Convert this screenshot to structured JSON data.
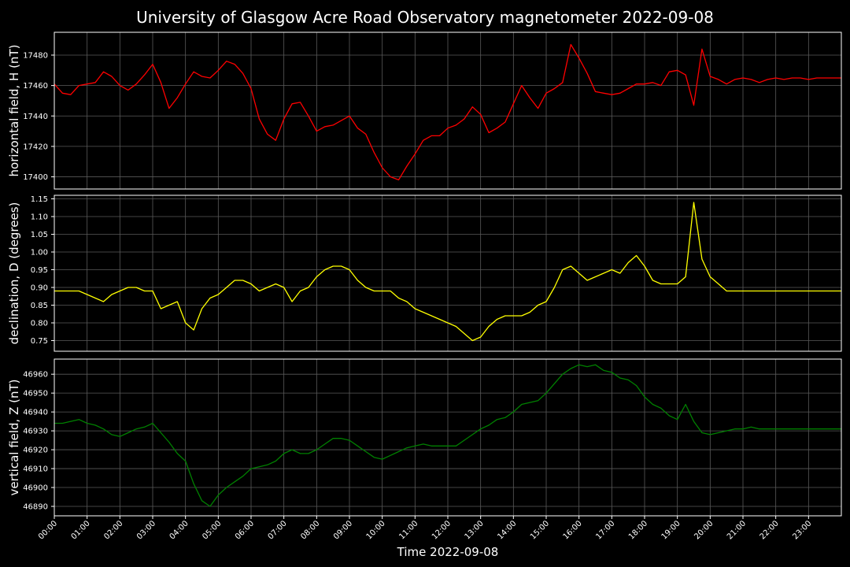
{
  "chart_data": {
    "type": "line",
    "title": "University of Glasgow Acre Road Observatory magnetometer 2022-09-08",
    "xlabel": "Time 2022-09-08",
    "x_tick_labels": [
      "00:00",
      "01:00",
      "02:00",
      "03:00",
      "04:00",
      "05:00",
      "06:00",
      "07:00",
      "08:00",
      "09:00",
      "10:00",
      "11:00",
      "12:00",
      "13:00",
      "14:00",
      "15:00",
      "16:00",
      "17:00",
      "18:00",
      "19:00",
      "20:00",
      "21:00",
      "22:00",
      "23:00"
    ],
    "xlim_hours": [
      0,
      24
    ],
    "grid": true,
    "panels": [
      {
        "ylabel": "horizontal field, H (nT)",
        "color": "#ff0000",
        "ylim": [
          17392,
          17495
        ],
        "yticks": [
          17400,
          17420,
          17440,
          17460,
          17480
        ],
        "ytick_labels": [
          "17400",
          "17420",
          "17440",
          "17460",
          "17480"
        ],
        "x": [
          0,
          0.25,
          0.5,
          0.75,
          1.0,
          1.25,
          1.5,
          1.75,
          2.0,
          2.25,
          2.5,
          2.75,
          3.0,
          3.25,
          3.5,
          3.75,
          4.0,
          4.25,
          4.5,
          4.75,
          5.0,
          5.25,
          5.5,
          5.75,
          6.0,
          6.25,
          6.5,
          6.75,
          7.0,
          7.25,
          7.5,
          7.75,
          8.0,
          8.25,
          8.5,
          8.75,
          9.0,
          9.25,
          9.5,
          9.75,
          10.0,
          10.25,
          10.5,
          10.75,
          11.0,
          11.25,
          11.5,
          11.75,
          12.0,
          12.25,
          12.5,
          12.75,
          13.0,
          13.25,
          13.5,
          13.75,
          14.0,
          14.25,
          14.5,
          14.75,
          15.0,
          15.25,
          15.5,
          15.75,
          16.0,
          16.25,
          16.5,
          16.75,
          17.0,
          17.25,
          17.5,
          17.75,
          18.0,
          18.25,
          18.5,
          18.75,
          19.0,
          19.25,
          19.5,
          19.75,
          20.0,
          20.25,
          20.5,
          20.75,
          21.0,
          21.25,
          21.5,
          21.75,
          22.0,
          22.25,
          22.5,
          22.75,
          23.0,
          23.25,
          23.5,
          23.75,
          24.0
        ],
        "values": [
          17461,
          17455,
          17454,
          17460,
          17461,
          17462,
          17469,
          17466,
          17460,
          17457,
          17461,
          17467,
          17474,
          17462,
          17445,
          17452,
          17461,
          17469,
          17466,
          17465,
          17470,
          17476,
          17474,
          17468,
          17458,
          17438,
          17428,
          17424,
          17438,
          17448,
          17449,
          17440,
          17430,
          17433,
          17434,
          17437,
          17440,
          17432,
          17428,
          17416,
          17406,
          17400,
          17398,
          17407,
          17415,
          17424,
          17427,
          17427,
          17432,
          17434,
          17438,
          17446,
          17441,
          17429,
          17432,
          17436,
          17448,
          17460,
          17452,
          17445,
          17455,
          17458,
          17462,
          17487,
          17478,
          17468,
          17456,
          17455,
          17454,
          17455,
          17458,
          17461,
          17461,
          17462,
          17460,
          17469,
          17470,
          17467,
          17447,
          17484,
          17466,
          17464,
          17461,
          17464,
          17465,
          17464,
          17462,
          17464,
          17465,
          17464,
          17465,
          17465,
          17464,
          17465,
          17465,
          17465,
          17465
        ]
      },
      {
        "ylabel": "declination, D (degrees)",
        "color": "#ffff00",
        "ylim": [
          0.72,
          1.16
        ],
        "yticks": [
          0.75,
          0.8,
          0.85,
          0.9,
          0.95,
          1.0,
          1.05,
          1.1,
          1.15
        ],
        "ytick_labels": [
          "0.75",
          "0.80",
          "0.85",
          "0.90",
          "0.95",
          "1.00",
          "1.05",
          "1.10",
          "1.15"
        ],
        "x": [
          0,
          0.25,
          0.5,
          0.75,
          1.0,
          1.25,
          1.5,
          1.75,
          2.0,
          2.25,
          2.5,
          2.75,
          3.0,
          3.25,
          3.5,
          3.75,
          4.0,
          4.25,
          4.5,
          4.75,
          5.0,
          5.25,
          5.5,
          5.75,
          6.0,
          6.25,
          6.5,
          6.75,
          7.0,
          7.25,
          7.5,
          7.75,
          8.0,
          8.25,
          8.5,
          8.75,
          9.0,
          9.25,
          9.5,
          9.75,
          10.0,
          10.25,
          10.5,
          10.75,
          11.0,
          11.25,
          11.5,
          11.75,
          12.0,
          12.25,
          12.5,
          12.75,
          13.0,
          13.25,
          13.5,
          13.75,
          14.0,
          14.25,
          14.5,
          14.75,
          15.0,
          15.25,
          15.5,
          15.75,
          16.0,
          16.25,
          16.5,
          16.75,
          17.0,
          17.25,
          17.5,
          17.75,
          18.0,
          18.25,
          18.5,
          18.75,
          19.0,
          19.25,
          19.5,
          19.75,
          20.0,
          20.25,
          20.5,
          20.75,
          21.0,
          21.25,
          21.5,
          21.75,
          22.0,
          22.25,
          22.5,
          22.75,
          23.0,
          23.25,
          23.5,
          23.75,
          24.0
        ],
        "values": [
          0.89,
          0.89,
          0.89,
          0.89,
          0.88,
          0.87,
          0.86,
          0.88,
          0.89,
          0.9,
          0.9,
          0.89,
          0.89,
          0.84,
          0.85,
          0.86,
          0.8,
          0.78,
          0.84,
          0.87,
          0.88,
          0.9,
          0.92,
          0.92,
          0.91,
          0.89,
          0.9,
          0.91,
          0.9,
          0.86,
          0.89,
          0.9,
          0.93,
          0.95,
          0.96,
          0.96,
          0.95,
          0.92,
          0.9,
          0.89,
          0.89,
          0.89,
          0.87,
          0.86,
          0.84,
          0.83,
          0.82,
          0.81,
          0.8,
          0.79,
          0.77,
          0.75,
          0.76,
          0.79,
          0.81,
          0.82,
          0.82,
          0.82,
          0.83,
          0.85,
          0.86,
          0.9,
          0.95,
          0.96,
          0.94,
          0.92,
          0.93,
          0.94,
          0.95,
          0.94,
          0.97,
          0.99,
          0.96,
          0.92,
          0.91,
          0.91,
          0.91,
          0.93,
          1.14,
          0.98,
          0.93,
          0.91,
          0.89,
          0.89,
          0.89,
          0.89,
          0.89,
          0.89,
          0.89,
          0.89,
          0.89,
          0.89,
          0.89,
          0.89,
          0.89,
          0.89,
          0.89
        ]
      },
      {
        "ylabel": "vertical field, Z (nT)",
        "color": "#008000",
        "ylim": [
          46885,
          46968
        ],
        "yticks": [
          46890,
          46900,
          46910,
          46920,
          46930,
          46940,
          46950,
          46960
        ],
        "ytick_labels": [
          "46890",
          "46900",
          "46910",
          "46920",
          "46930",
          "46940",
          "46950",
          "46960"
        ],
        "x": [
          0,
          0.25,
          0.5,
          0.75,
          1.0,
          1.25,
          1.5,
          1.75,
          2.0,
          2.25,
          2.5,
          2.75,
          3.0,
          3.25,
          3.5,
          3.75,
          4.0,
          4.25,
          4.5,
          4.75,
          5.0,
          5.25,
          5.5,
          5.75,
          6.0,
          6.25,
          6.5,
          6.75,
          7.0,
          7.25,
          7.5,
          7.75,
          8.0,
          8.25,
          8.5,
          8.75,
          9.0,
          9.25,
          9.5,
          9.75,
          10.0,
          10.25,
          10.5,
          10.75,
          11.0,
          11.25,
          11.5,
          11.75,
          12.0,
          12.25,
          12.5,
          12.75,
          13.0,
          13.25,
          13.5,
          13.75,
          14.0,
          14.25,
          14.5,
          14.75,
          15.0,
          15.25,
          15.5,
          15.75,
          16.0,
          16.25,
          16.5,
          16.75,
          17.0,
          17.25,
          17.5,
          17.75,
          18.0,
          18.25,
          18.5,
          18.75,
          19.0,
          19.25,
          19.5,
          19.75,
          20.0,
          20.25,
          20.5,
          20.75,
          21.0,
          21.25,
          21.5,
          21.75,
          22.0,
          22.25,
          22.5,
          22.75,
          23.0,
          23.25,
          23.5,
          23.75,
          24.0
        ],
        "values": [
          46934,
          46934,
          46935,
          46936,
          46934,
          46933,
          46931,
          46928,
          46927,
          46929,
          46931,
          46932,
          46934,
          46929,
          46924,
          46918,
          46914,
          46902,
          46893,
          46890,
          46896,
          46900,
          46903,
          46906,
          46910,
          46911,
          46912,
          46914,
          46918,
          46920,
          46918,
          46918,
          46920,
          46923,
          46926,
          46926,
          46925,
          46922,
          46919,
          46916,
          46915,
          46917,
          46919,
          46921,
          46922,
          46923,
          46922,
          46922,
          46922,
          46922,
          46925,
          46928,
          46931,
          46933,
          46936,
          46937,
          46940,
          46944,
          46945,
          46946,
          46950,
          46955,
          46960,
          46963,
          46965,
          46964,
          46965,
          46962,
          46961,
          46958,
          46957,
          46954,
          46948,
          46944,
          46942,
          46938,
          46936,
          46944,
          46935,
          46929,
          46928,
          46929,
          46930,
          46931,
          46931,
          46932,
          46931,
          46931,
          46931,
          46931,
          46931,
          46931,
          46931,
          46931,
          46931,
          46931,
          46931
        ]
      }
    ]
  }
}
